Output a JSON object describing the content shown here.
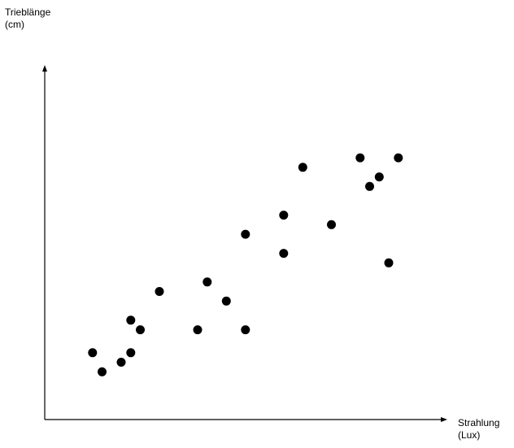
{
  "chart_data": {
    "type": "scatter",
    "title": "",
    "ylabel": [
      "Trieblänge",
      "(cm)"
    ],
    "xlabel": [
      "Strahlung",
      "(Lux)"
    ],
    "xticks": [],
    "yticks": [],
    "grid": false,
    "xlim": [
      0,
      20.8
    ],
    "ylim": [
      0,
      14
    ],
    "points": [
      {
        "x": 2.5,
        "y": 3.5
      },
      {
        "x": 3.0,
        "y": 2.5
      },
      {
        "x": 4.0,
        "y": 3.0
      },
      {
        "x": 4.5,
        "y": 3.5
      },
      {
        "x": 4.5,
        "y": 5.2
      },
      {
        "x": 5.0,
        "y": 4.7
      },
      {
        "x": 6.0,
        "y": 6.7
      },
      {
        "x": 8.0,
        "y": 4.7
      },
      {
        "x": 8.5,
        "y": 7.2
      },
      {
        "x": 9.5,
        "y": 6.2
      },
      {
        "x": 10.5,
        "y": 4.7
      },
      {
        "x": 10.5,
        "y": 9.7
      },
      {
        "x": 12.5,
        "y": 8.7
      },
      {
        "x": 12.5,
        "y": 10.7
      },
      {
        "x": 13.5,
        "y": 13.2
      },
      {
        "x": 15.0,
        "y": 10.2
      },
      {
        "x": 16.5,
        "y": 13.7
      },
      {
        "x": 17.0,
        "y": 12.2
      },
      {
        "x": 17.5,
        "y": 12.7
      },
      {
        "x": 18.0,
        "y": 8.2
      },
      {
        "x": 18.5,
        "y": 13.7
      }
    ]
  }
}
